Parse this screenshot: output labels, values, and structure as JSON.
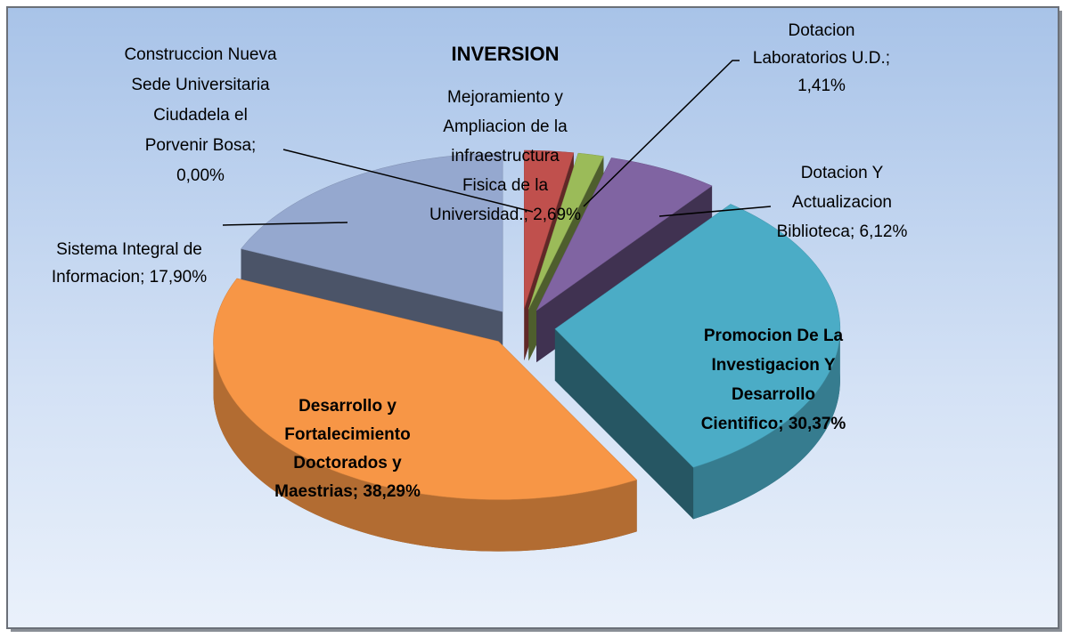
{
  "chart_data": {
    "type": "pie",
    "title": "INVERSION",
    "values": [
      0,
      2.69,
      1.41,
      6.12,
      30.37,
      38.29,
      17.9
    ],
    "value_labels": [
      [
        "Construccion Nueva",
        "Sede Universitaria",
        "Ciudadela el",
        "Porvenir Bosa;",
        "0,00%"
      ],
      [
        "Mejoramiento y",
        "Ampliacion de la",
        "infraestructura",
        "Fisica de la",
        "Universidad.; 2,69%"
      ],
      [
        "Dotacion",
        "Laboratorios U.D.;",
        "1,41%"
      ],
      [
        "Dotacion Y",
        "Actualizacion",
        "Biblioteca; 6,12%"
      ],
      [
        "Promocion De La",
        "Investigacion Y",
        "Desarrollo",
        "Cientifico; 30,37%"
      ],
      [
        "Desarrollo y",
        "Fortalecimiento",
        "Doctorados y",
        "Maestrias; 38,29%"
      ],
      [
        "Sistema Integral de",
        "Informacion; 17,90%"
      ]
    ],
    "colors": [
      "#4f81bd",
      "#c0504d",
      "#9bbb59",
      "#8064a2",
      "#4bacc6",
      "#f79646",
      "#95a8cf"
    ]
  }
}
